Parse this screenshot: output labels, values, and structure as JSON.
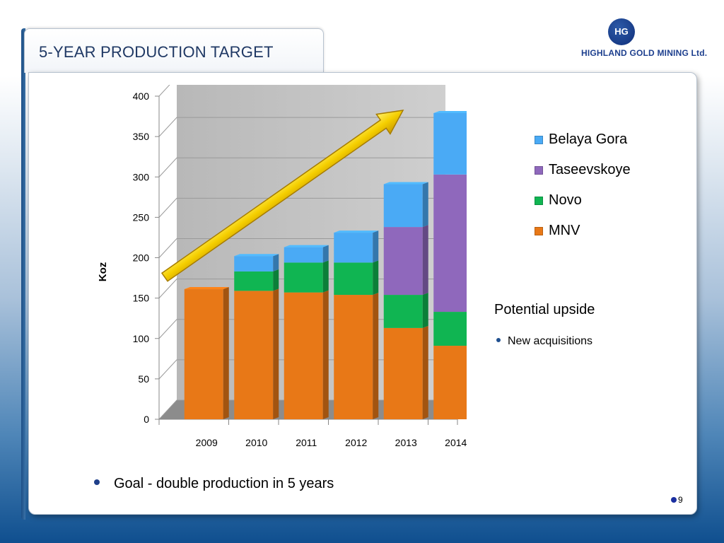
{
  "slide": {
    "title": "5-YEAR PRODUCTION TARGET",
    "page_number": "9",
    "goal_text": "Goal - double production in 5 years",
    "upside": {
      "title": "Potential upside",
      "bullet": "New acquisitions"
    },
    "logo": {
      "mark": "HG",
      "company": "HIGHLAND GOLD MINING Ltd."
    }
  },
  "chart_data": {
    "type": "bar",
    "stacked": true,
    "categories": [
      "2009",
      "2010",
      "2011",
      "2012",
      "2013",
      "2014"
    ],
    "series": [
      {
        "name": "MNV",
        "color": "#e87817",
        "values": [
          161,
          159,
          157,
          154,
          113,
          91
        ]
      },
      {
        "name": "Novo",
        "color": "#10b552",
        "values": [
          0,
          24,
          37,
          40,
          41,
          42
        ]
      },
      {
        "name": "Taseevskoye",
        "color": "#8f68bc",
        "values": [
          0,
          0,
          0,
          0,
          84,
          170
        ]
      },
      {
        "name": "Belaya Gora",
        "color": "#4aaaf5",
        "values": [
          0,
          19,
          19,
          37,
          53,
          76
        ]
      }
    ],
    "legend_order": [
      "Belaya Gora",
      "Taseevskoye",
      "Novo",
      "MNV"
    ],
    "ylabel": "Koz",
    "ylim": [
      0,
      400
    ],
    "yticks": [
      0,
      50,
      100,
      150,
      200,
      250,
      300,
      350,
      400
    ],
    "grid": true,
    "legend_position": "right",
    "annotation": "trend-arrow"
  }
}
